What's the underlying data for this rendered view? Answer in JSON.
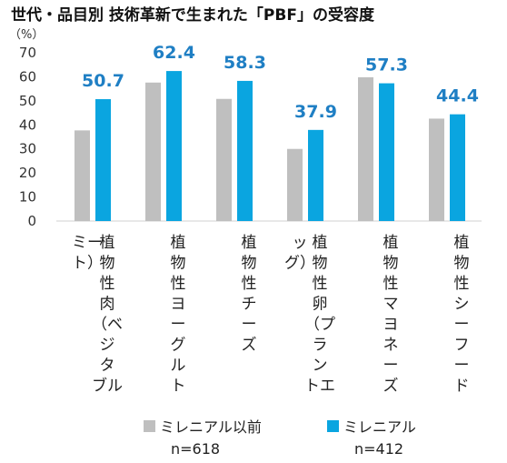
{
  "chart_data": {
    "type": "bar",
    "title": "世代・品目別 技術革新で生まれた「PBF」の受容度",
    "y_unit": "（%）",
    "ylim": [
      0,
      70
    ],
    "yticks": [
      0,
      10,
      20,
      30,
      40,
      50,
      60,
      70
    ],
    "grid": false,
    "categories": [
      [
        "植",
        "物",
        "性",
        "肉",
        "（ベ",
        "ジ",
        "タ",
        "ブル",
        "ミー",
        "ト）"
      ],
      [
        "植",
        "物",
        "性",
        "ヨ",
        "ー",
        "グ",
        "ル",
        "ト"
      ],
      [
        "植",
        "物",
        "性",
        "チ",
        "ー",
        "ズ"
      ],
      [
        "植",
        "物",
        "性",
        "卵",
        "（プ",
        "ラ",
        "ン",
        "トエ",
        "ッ",
        "グ）"
      ],
      [
        "植",
        "物",
        "性",
        "マ",
        "ヨ",
        "ネ",
        "ー",
        "ズ"
      ],
      [
        "植",
        "物",
        "性",
        "シ",
        "ー",
        "フ",
        "ー",
        "ド"
      ]
    ],
    "series": [
      {
        "name": "ミレニアル以前",
        "n": "n=618",
        "color": "#bfbfbf",
        "values": [
          37.7,
          57.6,
          50.8,
          30.0,
          59.8,
          42.6
        ]
      },
      {
        "name": "ミレニアル",
        "n": "n=412",
        "color": "#0aa5e0",
        "values": [
          50.7,
          62.4,
          58.3,
          37.9,
          57.3,
          44.4
        ],
        "labels": [
          "50.7",
          "62.4",
          "58.3",
          "37.9",
          "57.3",
          "44.4"
        ]
      }
    ],
    "legend": "bottom"
  }
}
